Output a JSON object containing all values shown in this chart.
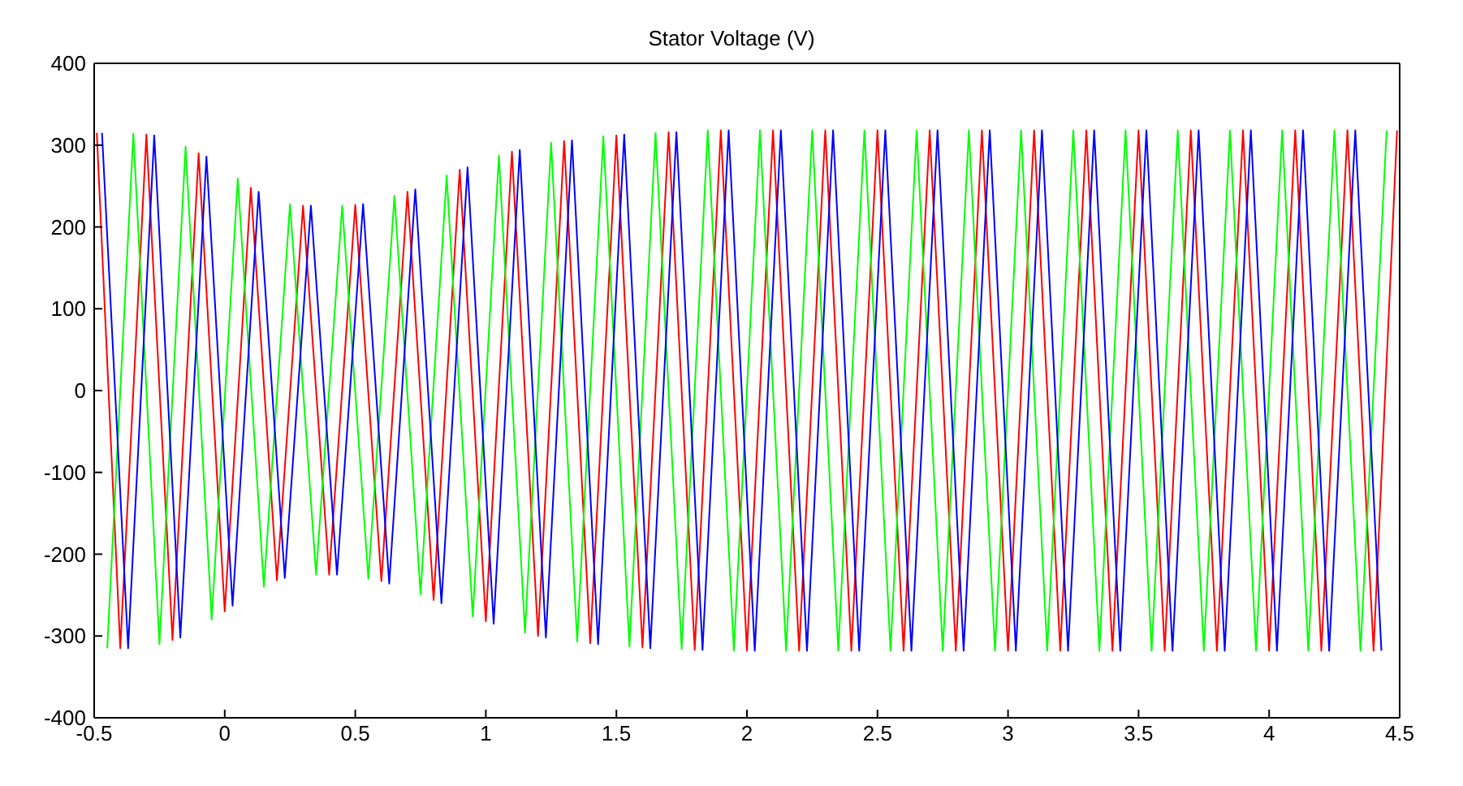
{
  "chart_data": {
    "type": "line",
    "title": "Stator Voltage (V)",
    "xlim": [
      -0.5,
      4.5
    ],
    "xticks": [
      -0.5,
      0,
      0.5,
      1,
      1.5,
      2,
      2.5,
      3,
      3.5,
      4,
      4.5
    ],
    "ylim": [
      -400,
      400
    ],
    "yticks": [
      -400,
      -300,
      -200,
      -100,
      0,
      100,
      200,
      300,
      400
    ],
    "marker": "none",
    "line_style": "solid",
    "series": [
      {
        "color": "#ff0000",
        "x": [
          -0.49,
          -0.4,
          -0.3,
          -0.2,
          -0.1,
          0,
          0.1,
          0.2,
          0.3,
          0.4,
          0.5,
          0.6,
          0.7,
          0.8,
          0.9,
          1,
          1.1,
          1.2,
          1.3,
          1.4,
          1.5,
          1.6,
          1.7,
          1.8,
          1.9,
          2,
          2.1,
          2.2,
          2.3,
          2.4,
          2.5,
          2.6,
          2.7,
          2.8,
          2.9,
          3,
          3.1,
          3.2,
          3.3,
          3.4,
          3.5,
          3.6,
          3.7,
          3.8,
          3.9,
          4,
          4.1,
          4.2,
          4.3,
          4.4,
          4.49
        ],
        "values": [
          315,
          -315,
          313,
          -305,
          290,
          -270,
          248,
          -232,
          226,
          -225,
          227,
          -233,
          243,
          -256,
          270,
          -282,
          292,
          -300,
          305,
          -309,
          312,
          -314,
          316,
          -317,
          318,
          -318,
          318,
          -318,
          318,
          -318,
          318,
          -318,
          318,
          -318,
          318,
          -318,
          318,
          -318,
          318,
          -318,
          318,
          -318,
          318,
          -318,
          318,
          -318,
          318,
          -318,
          318,
          -318,
          318
        ]
      },
      {
        "color": "#00ff00",
        "x": [
          -0.45,
          -0.35,
          -0.25,
          -0.15,
          -0.05,
          0.05,
          0.15,
          0.25,
          0.35,
          0.45,
          0.55,
          0.65,
          0.75,
          0.85,
          0.95,
          1.05,
          1.15,
          1.25,
          1.35,
          1.45,
          1.55,
          1.65,
          1.75,
          1.85,
          1.95,
          2.05,
          2.15,
          2.25,
          2.35,
          2.45,
          2.55,
          2.65,
          2.75,
          2.85,
          2.95,
          3.05,
          3.15,
          3.25,
          3.35,
          3.45,
          3.55,
          3.65,
          3.75,
          3.85,
          3.95,
          4.05,
          4.15,
          4.25,
          4.35,
          4.45
        ],
        "values": [
          -315,
          314,
          -310,
          298,
          -280,
          259,
          -240,
          228,
          -225,
          226,
          -230,
          238,
          -249,
          263,
          -276,
          287,
          -296,
          303,
          -307,
          311,
          -313,
          315,
          -316,
          318,
          -318,
          318,
          -318,
          318,
          -318,
          318,
          -318,
          318,
          -318,
          318,
          -318,
          318,
          -318,
          318,
          -318,
          318,
          -318,
          318,
          -318,
          318,
          -318,
          318,
          -318,
          318,
          -318,
          318
        ]
      },
      {
        "color": "#0000ff",
        "x": [
          -0.47,
          -0.37,
          -0.27,
          -0.17,
          -0.07,
          0.03,
          0.13,
          0.23,
          0.33,
          0.43,
          0.53,
          0.63,
          0.73,
          0.83,
          0.93,
          1.03,
          1.13,
          1.23,
          1.33,
          1.43,
          1.53,
          1.63,
          1.73,
          1.83,
          1.93,
          2.03,
          2.13,
          2.23,
          2.33,
          2.43,
          2.53,
          2.63,
          2.73,
          2.83,
          2.93,
          3.03,
          3.13,
          3.23,
          3.33,
          3.43,
          3.53,
          3.63,
          3.73,
          3.83,
          3.93,
          4.03,
          4.13,
          4.23,
          4.33,
          4.43
        ],
        "values": [
          315,
          -315,
          312,
          -302,
          286,
          -263,
          243,
          -229,
          226,
          -225,
          228,
          -236,
          246,
          -260,
          273,
          -285,
          294,
          -302,
          306,
          -310,
          313,
          -315,
          316,
          -317,
          318,
          -318,
          318,
          -318,
          318,
          -318,
          318,
          -318,
          318,
          -318,
          318,
          -318,
          318,
          -318,
          318,
          -318,
          318,
          -318,
          318,
          -318,
          318,
          -318,
          318,
          -318,
          318,
          -318
        ]
      }
    ]
  }
}
